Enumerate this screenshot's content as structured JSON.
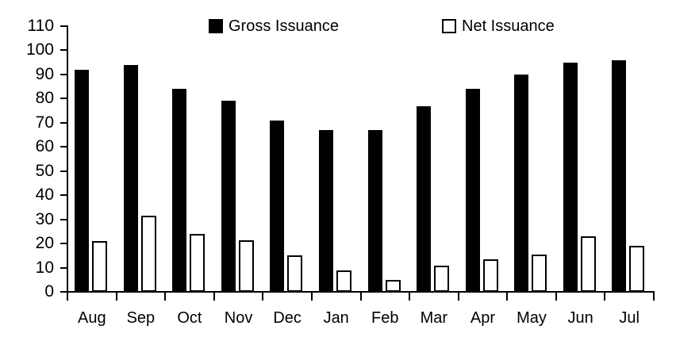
{
  "chart_data": {
    "type": "bar",
    "categories": [
      "Aug",
      "Sep",
      "Oct",
      "Nov",
      "Dec",
      "Jan",
      "Feb",
      "Mar",
      "Apr",
      "May",
      "Jun",
      "Jul"
    ],
    "series": [
      {
        "name": "Gross Issuance",
        "fill": "#000000",
        "stroke": "#000000",
        "values": [
          92,
          94,
          84,
          79,
          71,
          67,
          67,
          77,
          84,
          90,
          95,
          96
        ]
      },
      {
        "name": "Net Issuance",
        "fill": "#ffffff",
        "stroke": "#000000",
        "values": [
          21,
          31.5,
          24,
          21.5,
          15,
          9,
          5,
          11,
          13.5,
          15.5,
          23,
          19
        ]
      }
    ],
    "title": "",
    "xlabel": "",
    "ylabel": "",
    "ylim": [
      0,
      110
    ],
    "ytick_labels": [
      "0",
      "10",
      "20",
      "30",
      "40",
      "50",
      "60",
      "70",
      "80",
      "90",
      "100",
      "110"
    ],
    "grid": false,
    "legend_position": "top"
  },
  "colors": {
    "background": "#ffffff",
    "axis": "#000000",
    "text": "#000000",
    "gross_bar": "#000000",
    "net_bar_fill": "#ffffff",
    "net_bar_border": "#000000"
  }
}
